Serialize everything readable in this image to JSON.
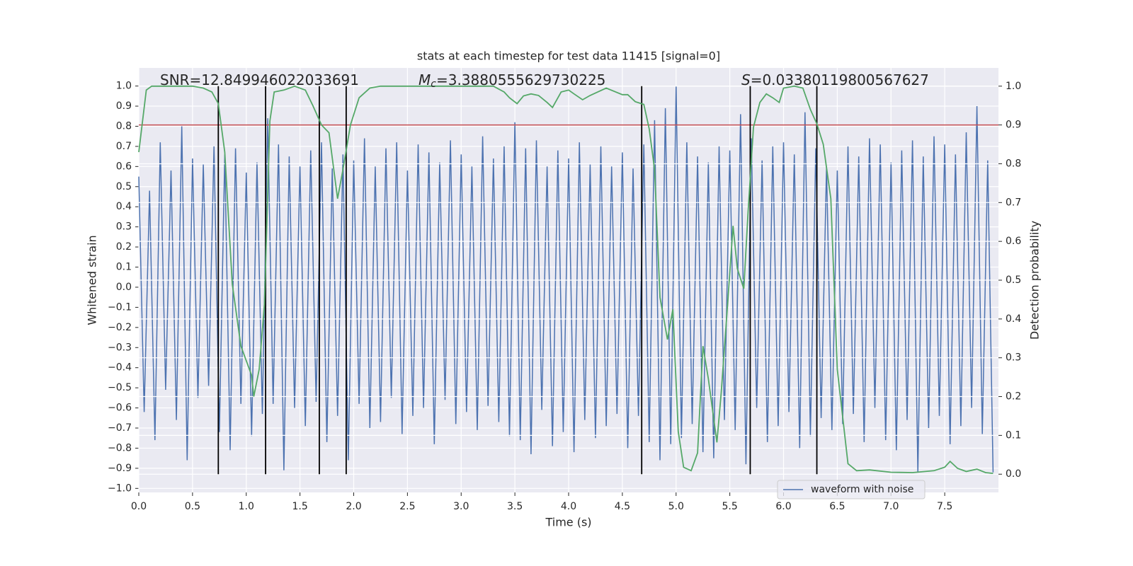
{
  "chart_data": {
    "type": "line",
    "title": "stats at each timestep for test data 11415 [signal=0]",
    "xlabel": "Time (s)",
    "ylabel": "Whitened strain",
    "y2label": "Detection probability",
    "annotations": [
      {
        "text": "SNR=12.849946022033691"
      },
      {
        "symbol": "M",
        "subscript": "c",
        "text": "=3.3880555629730225"
      },
      {
        "symbol": "S",
        "text": "=0.03380119800567627"
      }
    ],
    "xlim": [
      0,
      8.0
    ],
    "ylim": [
      -1.02,
      1.09
    ],
    "y2lim": [
      -0.047,
      1.047
    ],
    "xticks": [
      {
        "value": 0,
        "label": "0.0"
      },
      0.5,
      {
        "value": 1,
        "label": "1.0"
      },
      1.5,
      {
        "value": 2,
        "label": "2.0"
      },
      2.5,
      {
        "value": 3,
        "label": "3.0"
      },
      3.5,
      {
        "value": 4,
        "label": "4.0"
      },
      4.5,
      {
        "value": 5,
        "label": "5.0"
      },
      5.5,
      {
        "value": 6,
        "label": "6.0"
      },
      6.5,
      {
        "value": 7,
        "label": "7.0"
      },
      7.5
    ],
    "yticks": [
      {
        "value": -1,
        "label": "−1.0"
      },
      {
        "value": -0.9,
        "label": "−0.9"
      },
      {
        "value": -0.8,
        "label": "−0.8"
      },
      {
        "value": -0.7,
        "label": "−0.7"
      },
      {
        "value": -0.6,
        "label": "−0.6"
      },
      {
        "value": -0.5,
        "label": "−0.5"
      },
      {
        "value": -0.4,
        "label": "−0.4"
      },
      {
        "value": -0.3,
        "label": "−0.3"
      },
      {
        "value": -0.2,
        "label": "−0.2"
      },
      {
        "value": -0.1,
        "label": "−0.1"
      },
      {
        "value": 0,
        "label": "0.0"
      },
      0.1,
      0.2,
      0.3,
      0.4,
      0.5,
      0.6,
      0.7,
      0.8,
      0.9,
      {
        "value": 1,
        "label": "1.0"
      }
    ],
    "y2ticks": [
      {
        "value": 0,
        "label": "0.0"
      },
      0.1,
      0.2,
      0.3,
      0.4,
      0.5,
      0.6,
      0.7,
      0.8,
      0.9,
      {
        "value": 1,
        "label": "1.0"
      }
    ],
    "grid": true,
    "legend": "lower right",
    "hlines": [
      {
        "value": 0.9,
        "axis": "y2",
        "color": "#c44e52"
      }
    ],
    "vlines": {
      "x": [
        0.74,
        1.18,
        1.68,
        1.93,
        4.68,
        5.69,
        6.31
      ],
      "color": "#000000",
      "y2range": [
        0,
        1
      ]
    },
    "series": [
      {
        "name": "waveform with noise",
        "color": "#4c72b0",
        "x": [
          0,
          0.05,
          0.1,
          0.15,
          0.2,
          0.25,
          0.3,
          0.35,
          0.4,
          0.45,
          0.5,
          0.55,
          0.6,
          0.65,
          0.7,
          0.75,
          0.8,
          0.85,
          0.9,
          0.95,
          1,
          1.05,
          1.1,
          1.15,
          1.2,
          1.25,
          1.3,
          1.35,
          1.4,
          1.45,
          1.5,
          1.55,
          1.6,
          1.65,
          1.7,
          1.75,
          1.8,
          1.85,
          1.9,
          1.95,
          2,
          2.05,
          2.1,
          2.15,
          2.2,
          2.25,
          2.3,
          2.35,
          2.4,
          2.45,
          2.5,
          2.55,
          2.6,
          2.65,
          2.7,
          2.75,
          2.8,
          2.85,
          2.9,
          2.95,
          3,
          3.05,
          3.1,
          3.15,
          3.2,
          3.25,
          3.3,
          3.35,
          3.4,
          3.45,
          3.5,
          3.55,
          3.6,
          3.65,
          3.7,
          3.75,
          3.8,
          3.85,
          3.9,
          3.95,
          4,
          4.05,
          4.1,
          4.15,
          4.2,
          4.25,
          4.3,
          4.35,
          4.4,
          4.45,
          4.5,
          4.55,
          4.6,
          4.65,
          4.7,
          4.75,
          4.8,
          4.85,
          4.9,
          4.95,
          5,
          5.05,
          5.1,
          5.15,
          5.2,
          5.25,
          5.3,
          5.35,
          5.4,
          5.45,
          5.5,
          5.55,
          5.6,
          5.65,
          5.7,
          5.75,
          5.8,
          5.85,
          5.9,
          5.95,
          6,
          6.05,
          6.1,
          6.15,
          6.2,
          6.25,
          6.3,
          6.35,
          6.4,
          6.45,
          6.5,
          6.55,
          6.6,
          6.65,
          6.7,
          6.75,
          6.8,
          6.85,
          6.9,
          6.95,
          7,
          7.05,
          7.1,
          7.15,
          7.2,
          7.25,
          7.3,
          7.35,
          7.4,
          7.45,
          7.5,
          7.55,
          7.6,
          7.65,
          7.7,
          7.75,
          7.8,
          7.85,
          7.9,
          7.95
        ],
        "values": [
          0.55,
          -0.62,
          0.48,
          -0.76,
          0.72,
          -0.51,
          0.58,
          -0.66,
          0.8,
          -0.86,
          0.64,
          -0.55,
          0.61,
          -0.49,
          0.7,
          -0.72,
          0.66,
          -0.81,
          0.69,
          -0.58,
          0.57,
          -0.74,
          0.62,
          -0.63,
          0.84,
          -0.58,
          0.71,
          -0.91,
          0.65,
          -0.6,
          0.6,
          -0.69,
          0.68,
          -0.57,
          0.72,
          -0.77,
          0.59,
          -0.64,
          0.66,
          -0.86,
          0.63,
          -0.58,
          0.74,
          -0.7,
          0.6,
          -0.67,
          0.69,
          -0.55,
          0.72,
          -0.73,
          0.58,
          -0.64,
          0.71,
          -0.6,
          0.67,
          -0.78,
          0.62,
          -0.56,
          0.73,
          -0.68,
          0.66,
          -0.62,
          0.6,
          -0.71,
          0.75,
          -0.59,
          0.64,
          -0.67,
          0.7,
          -0.74,
          0.82,
          -0.76,
          0.69,
          -0.83,
          0.73,
          -0.61,
          0.6,
          -0.79,
          0.68,
          -0.72,
          0.64,
          -0.82,
          0.72,
          -0.66,
          0.61,
          -0.75,
          0.7,
          -0.69,
          0.6,
          -0.63,
          0.67,
          -0.8,
          0.59,
          -0.64,
          0.71,
          -0.77,
          0.83,
          -0.86,
          0.89,
          -0.78,
          1.0,
          -0.75,
          0.72,
          -0.68,
          0.65,
          -0.82,
          0.62,
          -0.85,
          0.7,
          -0.66,
          0.68,
          -0.71,
          0.86,
          -0.88,
          0.74,
          -0.6,
          0.63,
          -0.77,
          0.7,
          -0.69,
          0.72,
          -0.62,
          0.66,
          -0.8,
          0.87,
          -0.74,
          0.69,
          -0.65,
          0.6,
          -0.71,
          0.58,
          -0.68,
          0.7,
          -0.63,
          0.65,
          -0.77,
          0.74,
          -0.6,
          0.71,
          -0.76,
          0.62,
          -0.81,
          0.68,
          -0.66,
          0.73,
          -0.92,
          0.65,
          -0.7,
          0.75,
          -0.64,
          0.71,
          -0.78,
          0.66,
          -0.69,
          0.77,
          -0.6,
          0.9,
          -0.73,
          0.63,
          -0.92
        ]
      },
      {
        "color": "#55a868",
        "axis": "y2",
        "x": [
          0,
          0.07,
          0.12,
          0.5,
          0.6,
          0.68,
          0.74,
          0.8,
          0.87,
          0.95,
          1.05,
          1.07,
          1.12,
          1.17,
          1.22,
          1.26,
          1.35,
          1.45,
          1.55,
          1.62,
          1.7,
          1.77,
          1.85,
          1.9,
          1.97,
          2.05,
          2.15,
          2.25,
          2.5,
          3.0,
          3.3,
          3.4,
          3.45,
          3.52,
          3.58,
          3.65,
          3.72,
          3.8,
          3.85,
          3.93,
          4.0,
          4.05,
          4.13,
          4.2,
          4.35,
          4.5,
          4.55,
          4.62,
          4.7,
          4.75,
          4.8,
          4.85,
          4.92,
          4.97,
          5.02,
          5.07,
          5.14,
          5.2,
          5.25,
          5.3,
          5.38,
          5.42,
          5.48,
          5.53,
          5.57,
          5.63,
          5.67,
          5.72,
          5.78,
          5.84,
          5.9,
          5.96,
          6.0,
          6.1,
          6.18,
          6.25,
          6.31,
          6.37,
          6.44,
          6.5,
          6.6,
          6.68,
          6.8,
          7.0,
          7.2,
          7.4,
          7.5,
          7.55,
          7.62,
          7.7,
          7.8,
          7.88,
          7.95
        ],
        "values": [
          0.83,
          0.99,
          1.0,
          1.0,
          0.995,
          0.985,
          0.955,
          0.83,
          0.49,
          0.33,
          0.255,
          0.2,
          0.27,
          0.44,
          0.91,
          0.985,
          0.99,
          1.0,
          0.99,
          0.95,
          0.9,
          0.88,
          0.71,
          0.785,
          0.9,
          0.97,
          0.995,
          1.0,
          1.0,
          1.0,
          1.0,
          0.985,
          0.97,
          0.955,
          0.975,
          0.98,
          0.976,
          0.958,
          0.945,
          0.985,
          0.99,
          0.98,
          0.965,
          0.976,
          0.995,
          0.978,
          0.978,
          0.96,
          0.953,
          0.89,
          0.785,
          0.456,
          0.347,
          0.425,
          0.11,
          0.018,
          0.009,
          0.055,
          0.33,
          0.246,
          0.082,
          0.21,
          0.44,
          0.64,
          0.53,
          0.478,
          0.675,
          0.894,
          0.958,
          0.98,
          0.97,
          0.958,
          0.995,
          1.0,
          0.995,
          0.94,
          0.903,
          0.85,
          0.71,
          0.27,
          0.027,
          0.009,
          0.011,
          0.005,
          0.004,
          0.009,
          0.018,
          0.033,
          0.015,
          0.007,
          0.013,
          0.004,
          0.002
        ]
      }
    ]
  }
}
